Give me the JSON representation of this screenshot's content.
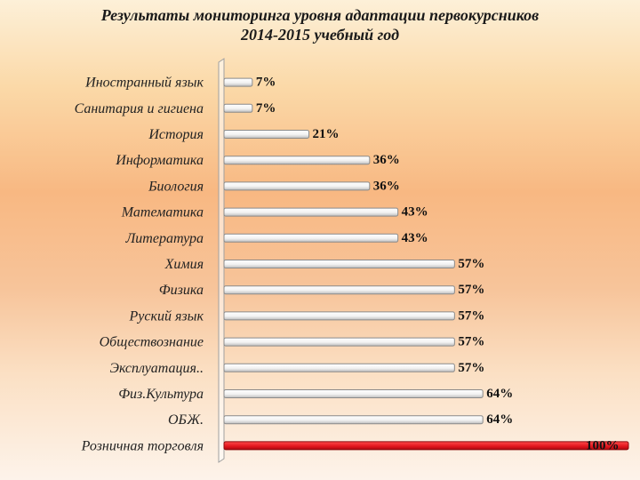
{
  "title": {
    "line1": "Результаты мониторинга уровня адаптации первокурсников",
    "line2": "2014-2015 учебный год"
  },
  "chart_data": {
    "type": "bar",
    "orientation": "horizontal",
    "categories": [
      "Иностранный язык",
      "Санитария и гигиена",
      "История",
      "Информатика",
      "Биология",
      "Математика",
      "Литература",
      "Химия",
      "Физика",
      "Руский язык",
      "Обществознание",
      "Эксплуатация..",
      "Физ.Культура",
      "ОБЖ.",
      "Розничная торговля"
    ],
    "values": [
      7,
      7,
      21,
      36,
      36,
      43,
      43,
      57,
      57,
      57,
      57,
      57,
      64,
      64,
      100
    ],
    "value_labels": [
      "7%",
      "7%",
      "21%",
      "36%",
      "36%",
      "43%",
      "43%",
      "57%",
      "57%",
      "57%",
      "57%",
      "57%",
      "64%",
      "64%",
      "100%"
    ],
    "xlim": [
      0,
      100
    ],
    "grid": false,
    "legend": "none",
    "bar_color": "#ffffff",
    "highlight_color": "#e8141c"
  }
}
